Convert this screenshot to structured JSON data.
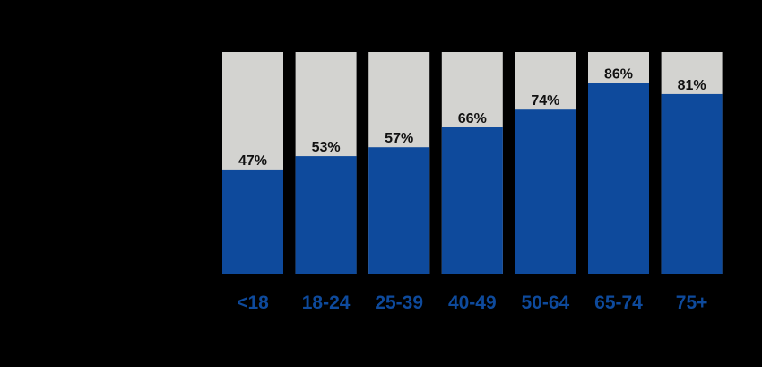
{
  "chart_data": {
    "type": "bar",
    "stacked_to_100": true,
    "categories": [
      "<18",
      "18-24",
      "25-39",
      "40-49",
      "50-64",
      "65-74",
      "75+"
    ],
    "values": [
      47,
      53,
      57,
      66,
      74,
      86,
      81
    ],
    "value_labels": [
      "47%",
      "53%",
      "57%",
      "66%",
      "74%",
      "86%",
      "81%"
    ],
    "ylim": [
      0,
      100
    ],
    "title": "",
    "xlabel": "",
    "ylabel": "",
    "grid": false,
    "colors": {
      "background": "#000000",
      "bar_fill": "#0e4a9c",
      "bar_remainder": "#d3d3d0",
      "category_label": "#0e4a9c",
      "value_label": "#111111"
    }
  }
}
